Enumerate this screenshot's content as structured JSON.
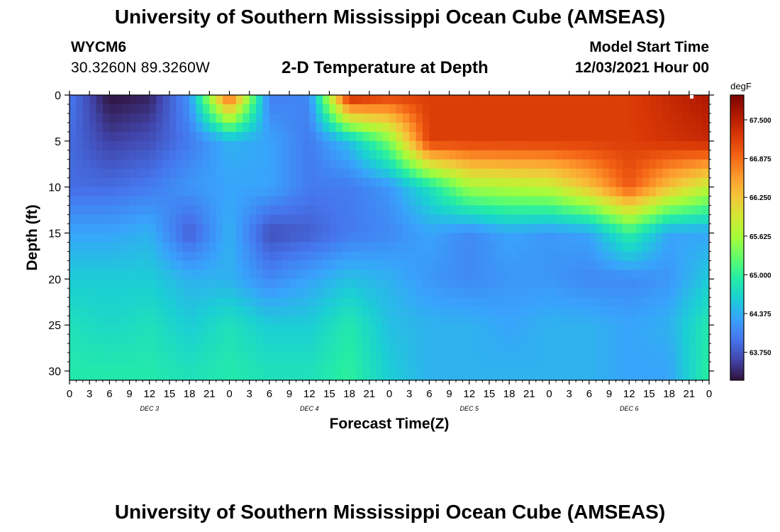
{
  "page": {
    "title": "University of Southern Mississippi Ocean Cube (AMSEAS)",
    "station_id": "WYCM6",
    "station_location": "30.3260N  89.3260W",
    "subtitle": "2-D Temperature at Depth",
    "model_start_label": "Model Start Time",
    "model_start_value": "12/03/2021 Hour 00",
    "footer_title": "University of Southern Mississippi Ocean Cube (AMSEAS)"
  },
  "chart_data": {
    "type": "heatmap",
    "title": "2-D Temperature at Depth",
    "xlabel": "Forecast Time(Z)",
    "ylabel": "Depth (ft)",
    "x_unit": "hours since model start",
    "x_range": [
      0,
      96
    ],
    "y_range": [
      0,
      31
    ],
    "y_inverted": true,
    "x_tick_values": [
      0,
      3,
      6,
      9,
      12,
      15,
      18,
      21,
      24,
      27,
      30,
      33,
      36,
      39,
      42,
      45,
      48,
      51,
      54,
      57,
      60,
      63,
      66,
      69,
      72,
      75,
      78,
      81,
      84,
      87,
      90,
      93,
      96
    ],
    "x_tick_labels": [
      "0",
      "3",
      "6",
      "9",
      "12",
      "15",
      "18",
      "21",
      "0",
      "3",
      "6",
      "9",
      "12",
      "15",
      "18",
      "21",
      "0",
      "3",
      "6",
      "9",
      "12",
      "15",
      "18",
      "21",
      "0",
      "3",
      "6",
      "9",
      "12",
      "15",
      "18",
      "21",
      "0"
    ],
    "y_tick_values": [
      0,
      5,
      10,
      15,
      20,
      25,
      30
    ],
    "y_tick_labels": [
      "0",
      "5",
      "10",
      "15",
      "20",
      "25",
      "30"
    ],
    "day_labels": [
      {
        "label": "DEC 3",
        "hour": 12
      },
      {
        "label": "DEC 4",
        "hour": 36
      },
      {
        "label": "DEC 5",
        "hour": 60
      },
      {
        "label": "DEC 6",
        "hour": 84
      }
    ],
    "colorbar": {
      "unit": "degF",
      "min": 63.3,
      "max": 67.9,
      "tick_values": [
        67.5,
        66.875,
        66.25,
        65.625,
        65.0,
        64.375,
        63.75
      ],
      "tick_labels": [
        "67.500",
        "66.875",
        "66.250",
        "65.625",
        "65.000",
        "64.375",
        "63.750"
      ],
      "palette": [
        "#30123b",
        "#4145ab",
        "#4675ed",
        "#39a2fc",
        "#1bcfd4",
        "#24eca6",
        "#61fc6c",
        "#a4fc3b",
        "#d1e834",
        "#f3c63a",
        "#fe9b2d",
        "#f36315",
        "#d93806",
        "#b11901",
        "#7a0402"
      ]
    },
    "grid_x_hours": [
      0,
      6,
      12,
      18,
      24,
      30,
      36,
      42,
      48,
      54,
      60,
      66,
      72,
      78,
      84,
      90,
      96
    ],
    "grid_y_depths": [
      0,
      5,
      10,
      15,
      20,
      25,
      30
    ],
    "temperature_degF": [
      [
        64.0,
        63.3,
        63.4,
        64.2,
        67.1,
        64.0,
        64.1,
        67.5,
        67.2,
        67.2,
        67.2,
        67.2,
        67.2,
        67.2,
        67.2,
        67.4,
        67.6
      ],
      [
        63.9,
        63.6,
        63.7,
        64.0,
        64.4,
        64.3,
        64.0,
        64.5,
        65.4,
        67.2,
        67.2,
        67.2,
        67.2,
        67.2,
        67.2,
        67.3,
        67.4
      ],
      [
        63.9,
        63.9,
        64.0,
        64.2,
        64.3,
        64.3,
        64.0,
        64.0,
        64.2,
        64.8,
        65.6,
        65.7,
        65.8,
        66.3,
        67.0,
        66.3,
        65.8
      ],
      [
        64.3,
        64.3,
        64.4,
        63.8,
        64.4,
        63.7,
        63.8,
        64.0,
        64.1,
        64.3,
        64.1,
        64.3,
        64.2,
        64.3,
        65.0,
        64.3,
        64.3
      ],
      [
        64.6,
        64.6,
        64.6,
        64.4,
        64.4,
        64.1,
        64.3,
        64.5,
        64.4,
        64.2,
        64.1,
        64.2,
        64.2,
        64.1,
        64.1,
        64.2,
        64.6
      ],
      [
        64.8,
        64.7,
        64.8,
        64.6,
        64.8,
        64.6,
        64.6,
        64.9,
        64.5,
        64.4,
        64.4,
        64.3,
        64.4,
        64.4,
        64.3,
        64.4,
        64.9
      ],
      [
        64.9,
        64.9,
        64.9,
        64.8,
        64.9,
        64.8,
        64.8,
        65.0,
        64.6,
        64.4,
        64.4,
        64.4,
        64.4,
        64.4,
        64.3,
        64.3,
        65.0
      ]
    ]
  },
  "icons": {
    "colorbar_marker": "small-white-square"
  }
}
